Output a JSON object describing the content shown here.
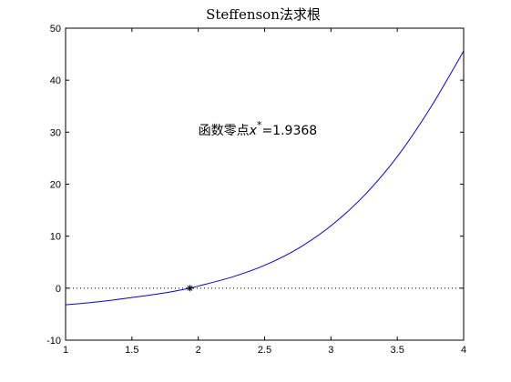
{
  "chart_data": {
    "type": "line",
    "title": "Steffenson法求根",
    "xlabel": "",
    "ylabel": "",
    "xlim": [
      1,
      4
    ],
    "ylim": [
      -10,
      50
    ],
    "xticks": [
      1,
      1.5,
      2,
      2.5,
      3,
      3.5,
      4
    ],
    "yticks": [
      -10,
      0,
      10,
      20,
      30,
      40,
      50
    ],
    "xtick_labels": [
      "1",
      "1.5",
      "2",
      "2.5",
      "3",
      "3.5",
      "4"
    ],
    "ytick_labels": [
      "-10",
      "0",
      "10",
      "20",
      "30",
      "40",
      "50"
    ],
    "grid": false,
    "series": [
      {
        "color": "#0000ff",
        "style": "solid",
        "x": [
          1.0,
          1.25,
          1.5,
          1.75,
          1.9368,
          2.0,
          2.25,
          2.5,
          2.75,
          3.0,
          3.25,
          3.5,
          3.75,
          4.0
        ],
        "y": [
          -3.2,
          -2.6,
          -1.8,
          -0.9,
          0.0,
          0.4,
          2.1,
          4.4,
          7.6,
          12.0,
          17.8,
          25.3,
          34.7,
          45.6
        ]
      }
    ],
    "reference_line": {
      "y": 0,
      "style": "dotted",
      "color": "#000000"
    },
    "marker": {
      "x": 1.9368,
      "y": 0,
      "symbol": "*",
      "color": "#000000"
    },
    "annotation": {
      "prefix": "函数零点",
      "var": "x",
      "sup": "*",
      "suffix": "=1.9368",
      "x": 2.0,
      "y": 29.5
    }
  }
}
